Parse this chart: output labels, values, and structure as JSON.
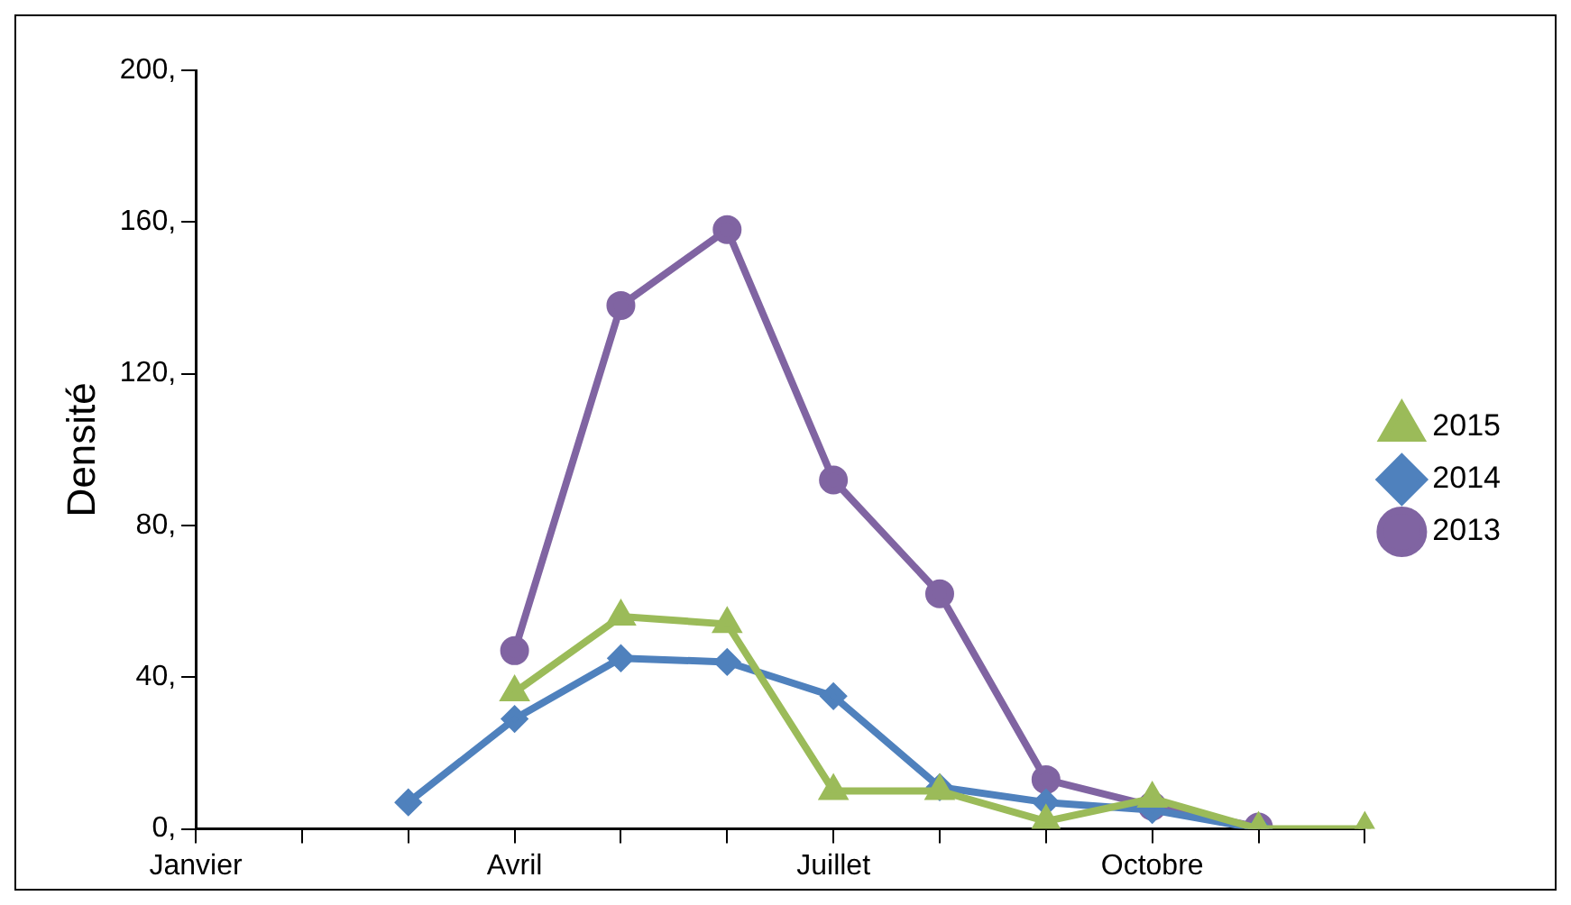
{
  "chart_data": {
    "type": "line",
    "ylabel": "Densité",
    "categories": [
      "Janvier",
      null,
      null,
      "Avril",
      null,
      null,
      "Juillet",
      null,
      null,
      "Octobre",
      null,
      null
    ],
    "series": [
      {
        "name": "2015",
        "color": "#9bbb59",
        "marker": "triangle",
        "values": [
          null,
          null,
          null,
          36,
          56,
          54,
          10,
          10,
          2,
          8,
          0,
          0
        ]
      },
      {
        "name": "2014",
        "color": "#4f81bd",
        "marker": "diamond",
        "values": [
          null,
          null,
          7,
          29,
          45,
          44,
          35,
          11,
          7,
          5,
          0,
          null
        ]
      },
      {
        "name": "2013",
        "color": "#8064a2",
        "marker": "circle",
        "values": [
          null,
          null,
          null,
          47,
          138,
          158,
          92,
          62,
          13,
          6,
          0.5,
          null
        ]
      }
    ],
    "ylim": [
      0,
      200
    ],
    "yticks": [
      {
        "value": 0,
        "label": "0,"
      },
      {
        "value": 40,
        "label": "40,"
      },
      {
        "value": 80,
        "label": "80,"
      },
      {
        "value": 120,
        "label": "120,"
      },
      {
        "value": 160,
        "label": "160,"
      },
      {
        "value": 200,
        "label": "200,"
      }
    ],
    "grid": false,
    "legend": "right",
    "line_style": "solid"
  }
}
